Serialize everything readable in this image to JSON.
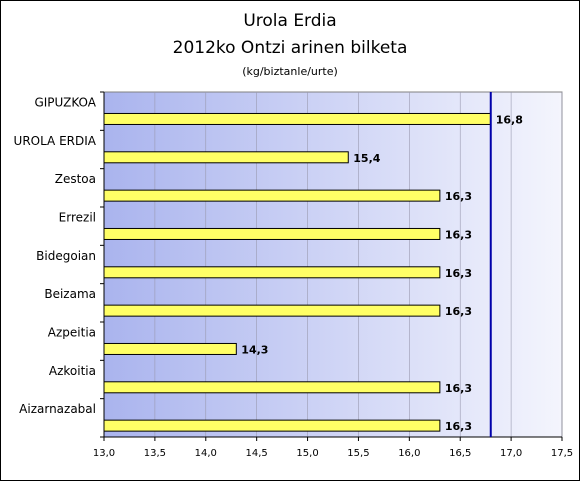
{
  "chart_data": {
    "type": "bar",
    "orientation": "horizontal",
    "title": "Urola Erdia",
    "subtitle": "2012ko Ontzi arinen bilketa",
    "unit_label": "(kg/biztanle/urte)",
    "categories": [
      "GIPUZKOA",
      "UROLA ERDIA",
      "Zestoa",
      "Errezil",
      "Bidegoian",
      "Beizama",
      "Azpeitia",
      "Azkoitia",
      "Aizarnazabal"
    ],
    "values": [
      16.8,
      15.4,
      16.3,
      16.3,
      16.3,
      16.3,
      14.3,
      16.3,
      16.3
    ],
    "value_labels": [
      "16,8",
      "15,4",
      "16,3",
      "16,3",
      "16,3",
      "16,3",
      "14,3",
      "16,3",
      "16,3"
    ],
    "xlim": [
      13.0,
      17.5
    ],
    "xticks": [
      "13,0",
      "13,5",
      "14,0",
      "14,5",
      "15,0",
      "15,5",
      "16,0",
      "16,5",
      "17,0",
      "17,5"
    ],
    "reference_line": 16.8,
    "grid": "vertical gridlines on plot area",
    "legend": "none",
    "colors": {
      "bar_fill": "#ffff66",
      "bar_stroke": "#000000",
      "plot_bg_left": "#aab4ee",
      "plot_bg_right": "#f4f5fd",
      "reference_line": "#0000aa"
    }
  }
}
